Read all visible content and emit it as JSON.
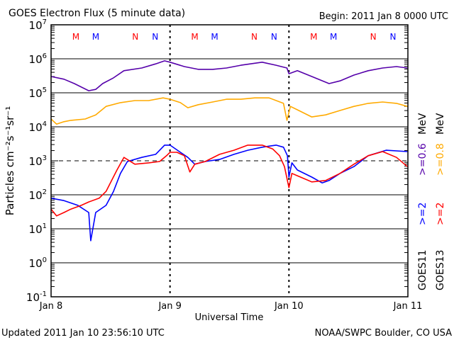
{
  "chart_data": {
    "type": "line",
    "title": "GOES Electron Flux (5 minute data)",
    "begin": "Begin: 2011 Jan 8 0000 UTC",
    "xlabel": "Universal Time",
    "ylabel": "Particles cm⁻²s⁻¹sr⁻¹",
    "y_scale": "log",
    "ylim_log10": [
      -1,
      7
    ],
    "xlim_hours": [
      0,
      72
    ],
    "y_ticks": [
      {
        "exp": "7"
      },
      {
        "exp": "6"
      },
      {
        "exp": "5"
      },
      {
        "exp": "4"
      },
      {
        "exp": "3"
      },
      {
        "exp": "2"
      },
      {
        "exp": "1"
      },
      {
        "exp": "0"
      },
      {
        "exp": "-1"
      }
    ],
    "y_tick_base": "10",
    "x_ticks": [
      {
        "hour": 0,
        "label": "Jan 8"
      },
      {
        "hour": 24,
        "label": "Jan 9"
      },
      {
        "hour": 48,
        "label": "Jan 10"
      },
      {
        "hour": 72,
        "label": "Jan 11"
      }
    ],
    "threshold_log10": 3,
    "grid_log10": [
      6,
      5,
      4,
      2,
      1,
      0
    ],
    "markers": [
      {
        "label": "M",
        "hour": 5,
        "color": "#ff0000"
      },
      {
        "label": "M",
        "hour": 9,
        "color": "#0000ff"
      },
      {
        "label": "N",
        "hour": 17,
        "color": "#ff0000"
      },
      {
        "label": "N",
        "hour": 21,
        "color": "#0000ff"
      },
      {
        "label": "M",
        "hour": 29,
        "color": "#ff0000"
      },
      {
        "label": "M",
        "hour": 33,
        "color": "#0000ff"
      },
      {
        "label": "N",
        "hour": 41,
        "color": "#ff0000"
      },
      {
        "label": "N",
        "hour": 45,
        "color": "#0000ff"
      },
      {
        "label": "M",
        "hour": 53,
        "color": "#ff0000"
      },
      {
        "label": "M",
        "hour": 57,
        "color": "#0000ff"
      },
      {
        "label": "N",
        "hour": 65,
        "color": "#ff0000"
      },
      {
        "label": "N",
        "hour": 69,
        "color": "#0000ff"
      }
    ],
    "legend": {
      "placement": "right",
      "columns": [
        {
          "satellite": "GOES11",
          "low": ">=2",
          "high": ">=0.6",
          "unit": "MeV",
          "low_color": "#0000ff",
          "high_color": "#5500aa"
        },
        {
          "satellite": "GOES13",
          "low": ">=2",
          "high": ">=0.8",
          "unit": "MeV",
          "low_color": "#ff0000",
          "high_color": "#ffaa00"
        }
      ]
    },
    "series": [
      {
        "name": "GOES11 >=0.6 MeV",
        "color": "#5500aa",
        "x_hours": [
          0,
          2.6,
          4.7,
          7.6,
          9,
          10.4,
          12.6,
          14.7,
          18.3,
          21.1,
          22.9,
          24,
          26.9,
          29.7,
          32.6,
          35.4,
          38.3,
          42.6,
          45.4,
          47.6,
          48,
          49.7,
          52.6,
          56.1,
          58.3,
          61.1,
          64,
          66.9,
          69.7,
          71.9
        ],
        "log10_flux": [
          5.48,
          5.4,
          5.27,
          5.06,
          5.1,
          5.27,
          5.44,
          5.65,
          5.73,
          5.85,
          5.94,
          5.9,
          5.77,
          5.69,
          5.69,
          5.73,
          5.81,
          5.9,
          5.81,
          5.73,
          5.56,
          5.65,
          5.48,
          5.27,
          5.35,
          5.52,
          5.65,
          5.73,
          5.77,
          5.73
        ]
      },
      {
        "name": "GOES13 >=0.8 MeV",
        "color": "#ffaa00",
        "x_hours": [
          0,
          1.1,
          2.6,
          4,
          6.9,
          9,
          11.1,
          14,
          16.9,
          19.7,
          22.6,
          24,
          26.1,
          27.6,
          29.7,
          32.6,
          35.4,
          38.3,
          41.1,
          44,
          46.9,
          47.6,
          48.3,
          49.7,
          52.6,
          55.4,
          58.3,
          61.1,
          64,
          66.9,
          69.7,
          71.9
        ],
        "log10_flux": [
          4.23,
          4.08,
          4.15,
          4.19,
          4.23,
          4.35,
          4.6,
          4.71,
          4.77,
          4.77,
          4.85,
          4.81,
          4.71,
          4.56,
          4.65,
          4.73,
          4.81,
          4.81,
          4.85,
          4.85,
          4.69,
          4.19,
          4.6,
          4.5,
          4.29,
          4.35,
          4.48,
          4.6,
          4.69,
          4.73,
          4.69,
          4.6
        ]
      },
      {
        "name": "GOES11 >=2 MeV",
        "color": "#0000ff",
        "x_hours": [
          0,
          2.6,
          5.4,
          7.6,
          8,
          9,
          11.1,
          12.6,
          14,
          15.4,
          18.3,
          21.1,
          22.9,
          24,
          26.1,
          27.6,
          29,
          31.1,
          34,
          36.9,
          39.7,
          42.6,
          45.4,
          46.9,
          47.7,
          48,
          48.6,
          49.7,
          52.6,
          54.7,
          56.1,
          58.3,
          61.1,
          64,
          67.6,
          71.9
        ],
        "log10_flux": [
          1.9,
          1.83,
          1.69,
          1.48,
          0.65,
          1.48,
          1.69,
          2.1,
          2.63,
          2.98,
          3.1,
          3.19,
          3.46,
          3.46,
          3.25,
          3.1,
          2.9,
          2.98,
          3.04,
          3.19,
          3.31,
          3.4,
          3.46,
          3.4,
          3.15,
          2.52,
          2.94,
          2.73,
          2.52,
          2.35,
          2.42,
          2.63,
          2.83,
          3.15,
          3.31,
          3.27
        ]
      },
      {
        "name": "GOES13 >=2 MeV",
        "color": "#ff0000",
        "x_hours": [
          0,
          1.1,
          2.6,
          4,
          6.1,
          7.6,
          9.7,
          11.1,
          13.3,
          14.7,
          16.9,
          19.7,
          21.9,
          23.3,
          24,
          25.4,
          26.9,
          28,
          29,
          31.1,
          34,
          36.9,
          39.7,
          42.6,
          44.7,
          46.1,
          47.1,
          48,
          48.6,
          49.7,
          52.6,
          55.4,
          58.3,
          61.1,
          64,
          66.9,
          69.7,
          71.9
        ],
        "log10_flux": [
          1.58,
          1.38,
          1.48,
          1.58,
          1.69,
          1.79,
          1.9,
          2.1,
          2.73,
          3.1,
          2.9,
          2.94,
          2.98,
          3.15,
          3.25,
          3.25,
          3.15,
          2.67,
          2.9,
          2.98,
          3.19,
          3.31,
          3.46,
          3.46,
          3.35,
          3.15,
          2.83,
          2.21,
          2.63,
          2.56,
          2.38,
          2.42,
          2.63,
          2.9,
          3.15,
          3.27,
          3.1,
          2.83
        ]
      }
    ]
  },
  "footer": {
    "updated": "Updated 2011 Jan 10 23:56:10 UTC",
    "credit": "NOAA/SWPC Boulder, CO USA"
  }
}
